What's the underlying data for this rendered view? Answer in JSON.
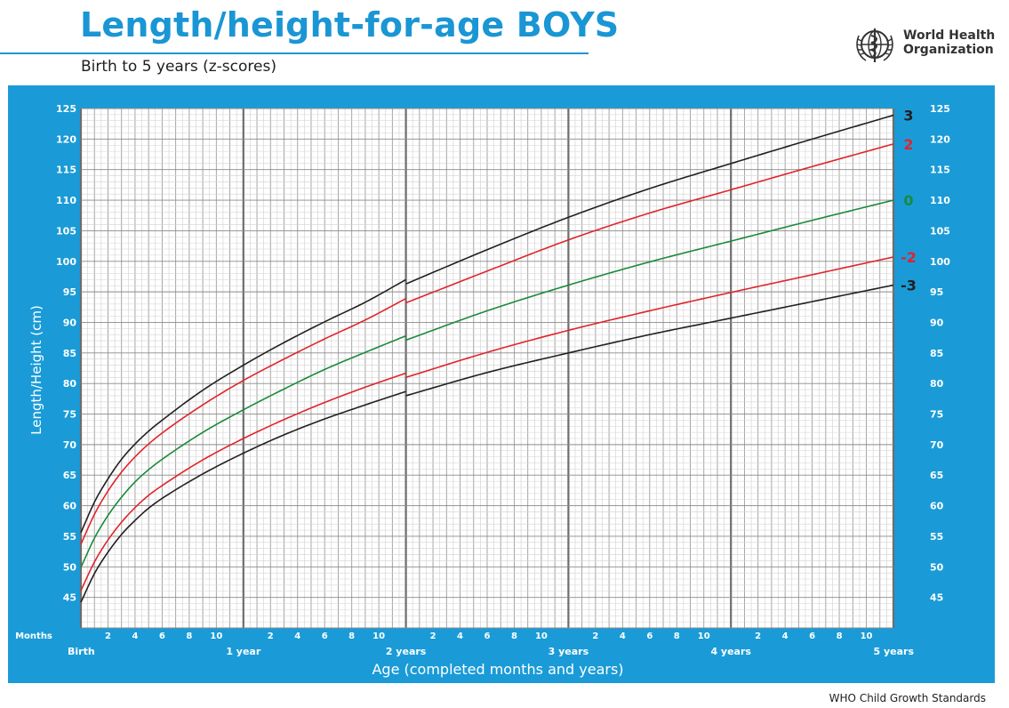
{
  "header": {
    "title": "Length/height-for-age BOYS",
    "subtitle": "Birth to 5 years (z-scores)",
    "org_line1": "World Health",
    "org_line2": "Organization"
  },
  "footer": {
    "text": "WHO Child Growth Standards"
  },
  "colors": {
    "brand_blue": "#1a9bd7",
    "z3": "#231f20",
    "z2": "#e0242a",
    "z0": "#1a8a3a",
    "grid": "#9a9a9a"
  },
  "chart_data": {
    "type": "line",
    "title": "Length/height-for-age BOYS",
    "subtitle": "Birth to 5 years (z-scores)",
    "ylabel": "Length/Height (cm)",
    "xlabel": "Age (completed months and years)",
    "ylim": [
      40,
      125
    ],
    "xlim": [
      0,
      60
    ],
    "grid": true,
    "y_ticks": [
      45,
      50,
      55,
      60,
      65,
      70,
      75,
      80,
      85,
      90,
      95,
      100,
      105,
      110,
      115,
      120,
      125
    ],
    "months_label": "Months",
    "month_ticks": [
      "2",
      "4",
      "6",
      "8",
      "10"
    ],
    "year_labels": [
      "Birth",
      "1 year",
      "2 years",
      "3 years",
      "4 years",
      "5 years"
    ],
    "length_height_switch_month": 24,
    "series": [
      {
        "name": "3",
        "color": "#231f20",
        "x": [
          0,
          1,
          2,
          3,
          4,
          5,
          6,
          9,
          12,
          15,
          18,
          21,
          24,
          24,
          30,
          36,
          42,
          48,
          54,
          60
        ],
        "values": [
          55.6,
          60.6,
          64.4,
          67.6,
          70.1,
          72.2,
          74.0,
          78.9,
          83.0,
          86.7,
          90.1,
          93.3,
          97.0,
          96.3,
          101.9,
          107.2,
          111.9,
          116.0,
          120.0,
          123.9
        ]
      },
      {
        "name": "2",
        "color": "#e0242a",
        "x": [
          0,
          1,
          2,
          3,
          4,
          5,
          6,
          9,
          12,
          15,
          18,
          21,
          24,
          24,
          30,
          36,
          42,
          48,
          54,
          60
        ],
        "values": [
          53.7,
          58.6,
          62.4,
          65.5,
          68.0,
          70.1,
          71.9,
          76.5,
          80.5,
          84.0,
          87.3,
          90.4,
          93.9,
          93.2,
          98.4,
          103.5,
          107.9,
          111.7,
          115.5,
          119.2
        ]
      },
      {
        "name": "0",
        "color": "#1a8a3a",
        "x": [
          0,
          1,
          2,
          3,
          4,
          5,
          6,
          9,
          12,
          15,
          18,
          21,
          24,
          24,
          30,
          36,
          42,
          48,
          54,
          60
        ],
        "values": [
          49.9,
          54.7,
          58.4,
          61.4,
          63.9,
          65.9,
          67.6,
          72.0,
          75.7,
          79.1,
          82.3,
          85.1,
          87.8,
          87.1,
          91.9,
          96.1,
          99.9,
          103.3,
          106.7,
          110.0
        ]
      },
      {
        "name": "-2",
        "color": "#e0242a",
        "x": [
          0,
          1,
          2,
          3,
          4,
          5,
          6,
          9,
          12,
          15,
          18,
          21,
          24,
          24,
          30,
          36,
          42,
          48,
          54,
          60
        ],
        "values": [
          46.1,
          50.8,
          54.4,
          57.3,
          59.7,
          61.7,
          63.3,
          67.5,
          71.0,
          74.1,
          76.9,
          79.4,
          81.7,
          81.0,
          85.1,
          88.7,
          91.9,
          94.9,
          97.8,
          100.7
        ]
      },
      {
        "name": "-3",
        "color": "#231f20",
        "x": [
          0,
          1,
          2,
          3,
          4,
          5,
          6,
          9,
          12,
          15,
          18,
          21,
          24,
          24,
          30,
          36,
          42,
          48,
          54,
          60
        ],
        "values": [
          44.2,
          48.9,
          52.4,
          55.3,
          57.6,
          59.6,
          61.2,
          65.2,
          68.6,
          71.6,
          74.2,
          76.5,
          78.7,
          78.0,
          81.8,
          85.0,
          88.0,
          90.7,
          93.4,
          96.1
        ]
      }
    ]
  }
}
